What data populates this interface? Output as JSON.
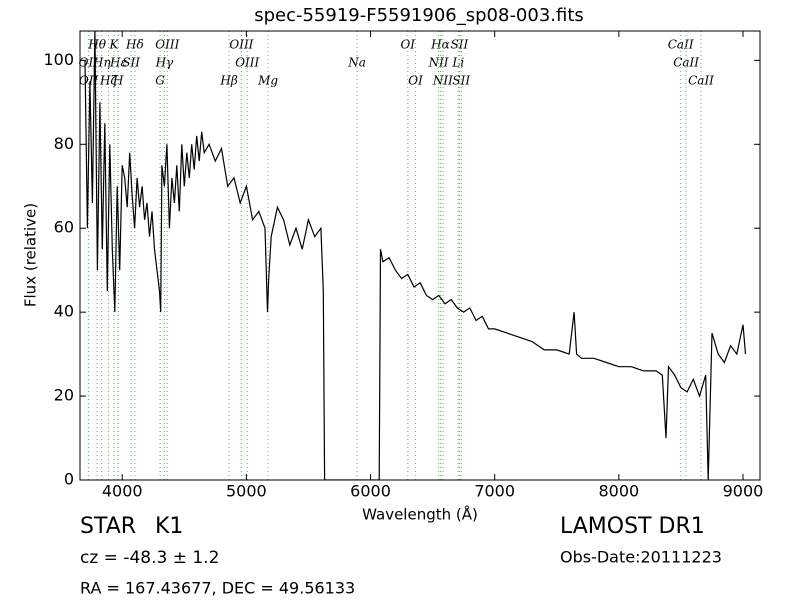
{
  "chart_data": {
    "type": "line",
    "title": "spec-55919-F5591906_sp08-003.fits",
    "x_label": "Wavelength (Å)",
    "y_label": "Flux (relative)",
    "xlim": [
      3660,
      9137
    ],
    "ylim": [
      0,
      107
    ],
    "xticks": [
      4000,
      5000,
      6000,
      7000,
      8000,
      9000
    ],
    "yticks": [
      0,
      20,
      40,
      60,
      80,
      100
    ],
    "color": "#000000",
    "line_color": "#5cb85c",
    "x": [
      3700,
      3720,
      3740,
      3760,
      3780,
      3800,
      3820,
      3840,
      3860,
      3880,
      3900,
      3920,
      3940,
      3960,
      3980,
      4000,
      4020,
      4040,
      4060,
      4080,
      4100,
      4120,
      4140,
      4160,
      4180,
      4200,
      4220,
      4240,
      4260,
      4280,
      4300,
      4310,
      4320,
      4340,
      4360,
      4380,
      4400,
      4420,
      4440,
      4460,
      4480,
      4500,
      4520,
      4540,
      4560,
      4580,
      4600,
      4620,
      4640,
      4660,
      4700,
      4750,
      4800,
      4850,
      4900,
      4950,
      5000,
      5050,
      5100,
      5150,
      5170,
      5180,
      5200,
      5250,
      5300,
      5350,
      5400,
      5450,
      5500,
      5550,
      5600,
      5620,
      5630,
      6000,
      6070,
      6080,
      6100,
      6150,
      6200,
      6250,
      6300,
      6350,
      6400,
      6450,
      6500,
      6550,
      6600,
      6650,
      6700,
      6750,
      6800,
      6850,
      6900,
      6950,
      7000,
      7100,
      7200,
      7300,
      7400,
      7500,
      7600,
      7640,
      7660,
      7700,
      7800,
      7900,
      8000,
      8100,
      8200,
      8300,
      8350,
      8380,
      8400,
      8450,
      8500,
      8550,
      8600,
      8650,
      8700,
      8720,
      8750,
      8800,
      8850,
      8900,
      8950,
      9000,
      9020
    ],
    "values": [
      100,
      60,
      95,
      66,
      107,
      50,
      90,
      55,
      85,
      45,
      80,
      55,
      40,
      70,
      50,
      75,
      72,
      65,
      78,
      68,
      60,
      72,
      65,
      70,
      62,
      66,
      58,
      64,
      55,
      50,
      45,
      40,
      75,
      70,
      80,
      60,
      72,
      66,
      75,
      64,
      80,
      70,
      78,
      72,
      80,
      74,
      82,
      76,
      83,
      78,
      80,
      76,
      79,
      70,
      72,
      66,
      70,
      62,
      64,
      60,
      40,
      48,
      58,
      65,
      62,
      56,
      60,
      55,
      62,
      58,
      60,
      45,
      0,
      0,
      0,
      55,
      52,
      53,
      50,
      48,
      49,
      46,
      47,
      44,
      43,
      44,
      42,
      43,
      41,
      40,
      41,
      38,
      39,
      36,
      36,
      35,
      34,
      33,
      31,
      31,
      30,
      40,
      30,
      29,
      29,
      28,
      27,
      27,
      26,
      26,
      25,
      10,
      27,
      25,
      22,
      21,
      24,
      20,
      25,
      0,
      35,
      30,
      28,
      32,
      30,
      37,
      30
    ],
    "lines": [
      [
        {
          "wavelength": 3798,
          "label": "Hθ"
        },
        {
          "wavelength": 3934,
          "label": "K"
        },
        {
          "wavelength": 4102,
          "label": "Hδ"
        },
        {
          "wavelength": 4363,
          "label": "OIII"
        },
        {
          "wavelength": 4960,
          "label": "OIII"
        },
        {
          "wavelength": 6300,
          "label": "OI"
        },
        {
          "wavelength": 6563,
          "label": "Hα"
        },
        {
          "wavelength": 6716,
          "label": "SII"
        },
        {
          "wavelength": 8498,
          "label": "CaII"
        }
      ],
      [
        {
          "wavelength": 3727,
          "label": "OII"
        },
        {
          "wavelength": 3835,
          "label": "Hη"
        },
        {
          "wavelength": 3970,
          "label": "Hε"
        },
        {
          "wavelength": 4072,
          "label": "SII"
        },
        {
          "wavelength": 4340,
          "label": "Hγ"
        },
        {
          "wavelength": 5007,
          "label": "OIII"
        },
        {
          "wavelength": 5892,
          "label": "Na"
        },
        {
          "wavelength": 6548,
          "label": "NII"
        },
        {
          "wavelength": 6707,
          "label": "Li"
        },
        {
          "wavelength": 8542,
          "label": "CaII"
        }
      ],
      [
        {
          "wavelength": 3729,
          "label": "OII"
        },
        {
          "wavelength": 3889,
          "label": "Hζ"
        },
        {
          "wavelength": 3968,
          "label": "H"
        },
        {
          "wavelength": 4305,
          "label": "G"
        },
        {
          "wavelength": 4861,
          "label": "Hβ"
        },
        {
          "wavelength": 5175,
          "label": "Mg"
        },
        {
          "wavelength": 6363,
          "label": "OI"
        },
        {
          "wavelength": 6583,
          "label": "NII"
        },
        {
          "wavelength": 6731,
          "label": "SII"
        },
        {
          "wavelength": 8662,
          "label": "CaII"
        }
      ]
    ]
  },
  "footer": {
    "object": "STAR",
    "class": "K1",
    "redshift": "cz = -48.3 ± 1.2",
    "coords": "RA = 167.43677, DEC = 49.56133",
    "survey": "LAMOST DR1",
    "obs_date": "Obs-Date:20111223"
  }
}
